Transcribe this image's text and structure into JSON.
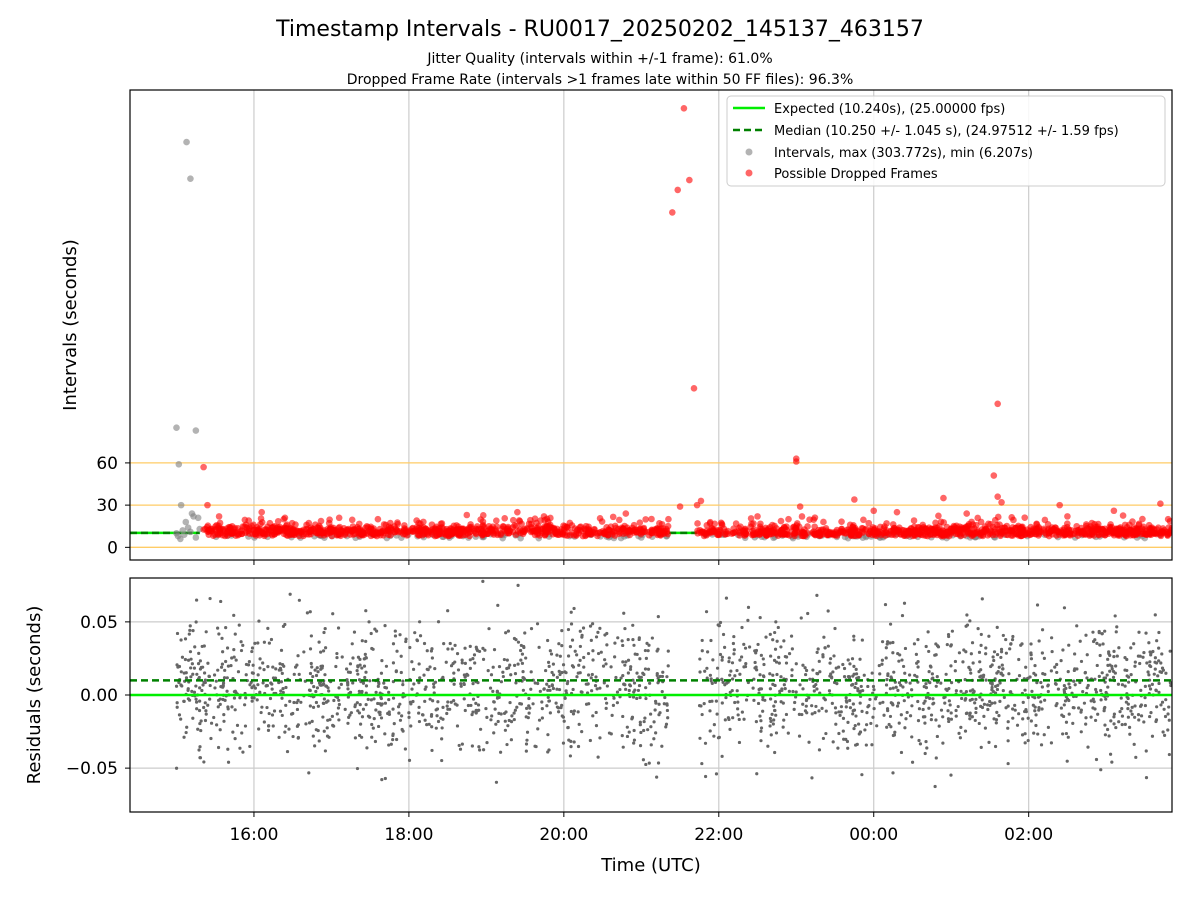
{
  "chart_data": [
    {
      "type": "scatter",
      "title": "Timestamp Intervals - RU0017_20250202_145137_463157",
      "subtitle_lines": [
        "Jitter Quality (intervals within +/-1 frame): 61.0%",
        "Dropped Frame Rate (intervals >1 frames late within 50 FF files): 96.3%"
      ],
      "xlabel": "",
      "ylabel": "Intervals (seconds)",
      "x_axis": {
        "unit": "hours since 14:00 UTC",
        "xlim": [
          14.4,
          27.85
        ],
        "ticks": [
          {
            "value": 16,
            "label": "16:00"
          },
          {
            "value": 18,
            "label": "18:00"
          },
          {
            "value": 20,
            "label": "20:00"
          },
          {
            "value": 22,
            "label": "22:00"
          },
          {
            "value": 24,
            "label": "00:00"
          },
          {
            "value": 26,
            "label": "02:00"
          }
        ]
      },
      "ylim": [
        -9,
        325
      ],
      "yticks": [
        0,
        30,
        60
      ],
      "grid": "vertical at x ticks; orange horizontal lines at 0, 30, 60",
      "reference_lines_orange": [
        0,
        30,
        60
      ],
      "legend": {
        "position": "top-right",
        "entries": [
          {
            "label": "Expected (10.240s), (25.00000 fps)",
            "style": "solid",
            "color": "#00ee00"
          },
          {
            "label": "Median (10.250 +/- 1.045 s), (24.97512 +/- 1.59 fps)",
            "style": "dashed",
            "color": "#008000"
          },
          {
            "label": "Intervals, max (303.772s), min (6.207s)",
            "style": "dot",
            "color": "#808080"
          },
          {
            "label": "Possible Dropped Frames",
            "style": "dot",
            "color": "#ff0000"
          }
        ]
      },
      "series": [
        {
          "name": "Expected (10.240s), (25.00000 fps)",
          "kind": "hline",
          "y": 10.24,
          "color": "#00ee00"
        },
        {
          "name": "Median (10.250 +/- 1.045 s), (24.97512 +/- 1.59 fps)",
          "kind": "hline-dashed",
          "y": 10.25,
          "color": "#008000"
        },
        {
          "name": "Intervals, max (303.772s), min (6.207s)",
          "kind": "scatter",
          "color": "#808080",
          "points": [
            [
              15.0,
              10
            ],
            [
              15.02,
              8
            ],
            [
              15.05,
              6
            ],
            [
              15.08,
              12
            ],
            [
              15.1,
              9
            ],
            [
              15.12,
              18
            ],
            [
              15.15,
              14
            ],
            [
              15.18,
              11
            ],
            [
              15.2,
              24
            ],
            [
              15.22,
              22
            ],
            [
              15.25,
              7
            ],
            [
              15.28,
              21
            ],
            [
              15.3,
              13
            ],
            [
              15.03,
              59
            ],
            [
              15.06,
              30
            ],
            [
              15.0,
              85
            ],
            [
              15.25,
              83
            ],
            [
              15.13,
              288
            ],
            [
              15.18,
              262
            ],
            [
              17.2,
              8
            ],
            [
              18.7,
              8
            ],
            [
              21.0,
              7
            ],
            [
              23.3,
              8
            ],
            [
              25.2,
              8
            ],
            [
              26.6,
              7
            ],
            [
              27.4,
              7
            ]
          ]
        },
        {
          "name": "Possible Dropped Frames",
          "kind": "scatter",
          "color": "#ff0000",
          "points": [
            [
              15.35,
              57
            ],
            [
              15.4,
              30
            ],
            [
              15.55,
              22
            ],
            [
              16.1,
              25
            ],
            [
              16.4,
              21
            ],
            [
              17.1,
              21
            ],
            [
              17.6,
              20
            ],
            [
              18.1,
              19
            ],
            [
              19.4,
              25
            ],
            [
              19.7,
              19
            ],
            [
              20.8,
              24
            ],
            [
              21.35,
              20
            ],
            [
              21.5,
              29
            ],
            [
              21.4,
              238
            ],
            [
              21.47,
              254
            ],
            [
              21.55,
              312
            ],
            [
              21.62,
              261
            ],
            [
              21.68,
              113
            ],
            [
              21.72,
              30
            ],
            [
              21.77,
              33
            ],
            [
              22.5,
              22
            ],
            [
              22.9,
              20
            ],
            [
              23.0,
              63
            ],
            [
              23.0,
              61
            ],
            [
              23.05,
              29
            ],
            [
              23.75,
              34
            ],
            [
              24.0,
              26
            ],
            [
              24.3,
              25
            ],
            [
              24.9,
              35
            ],
            [
              25.2,
              24
            ],
            [
              25.6,
              102
            ],
            [
              25.55,
              51
            ],
            [
              25.6,
              36
            ],
            [
              25.65,
              32
            ],
            [
              26.4,
              30
            ],
            [
              26.5,
              22
            ],
            [
              27.1,
              26
            ],
            [
              27.7,
              31
            ],
            [
              27.8,
              20
            ]
          ],
          "dense_band": {
            "x_start": 15.35,
            "x_end": 27.85,
            "y_center": 11,
            "y_spread": 4,
            "gap": [
              21.35,
              21.72
            ]
          }
        }
      ]
    },
    {
      "type": "scatter",
      "title": "",
      "xlabel": "Time (UTC)",
      "ylabel": "Residuals (seconds)",
      "x_axis": {
        "unit": "hours since 14:00 UTC",
        "xlim": [
          14.4,
          27.85
        ],
        "ticks": [
          {
            "value": 16,
            "label": "16:00"
          },
          {
            "value": 18,
            "label": "18:00"
          },
          {
            "value": 20,
            "label": "20:00"
          },
          {
            "value": 22,
            "label": "22:00"
          },
          {
            "value": 24,
            "label": "00:00"
          },
          {
            "value": 26,
            "label": "02:00"
          }
        ]
      },
      "ylim": [
        -0.08,
        0.08
      ],
      "yticks": [
        {
          "value": 0.05,
          "label": "0.05"
        },
        {
          "value": 0.0,
          "label": "0.00"
        },
        {
          "value": -0.05,
          "label": "−0.05"
        }
      ],
      "grid": "on",
      "series": [
        {
          "name": "",
          "kind": "hline",
          "y": 0.0,
          "color": "#00ee00"
        },
        {
          "name": "",
          "kind": "hline-dashed",
          "y": 0.01,
          "color": "#008000"
        },
        {
          "name": "",
          "kind": "scatter",
          "color": "#666666",
          "distribution": {
            "x_start": 15.0,
            "x_end": 27.85,
            "mean": 0.005,
            "sd": 0.022,
            "gap": [
              21.35,
              21.75
            ],
            "approx_count": 2200
          }
        }
      ]
    }
  ]
}
